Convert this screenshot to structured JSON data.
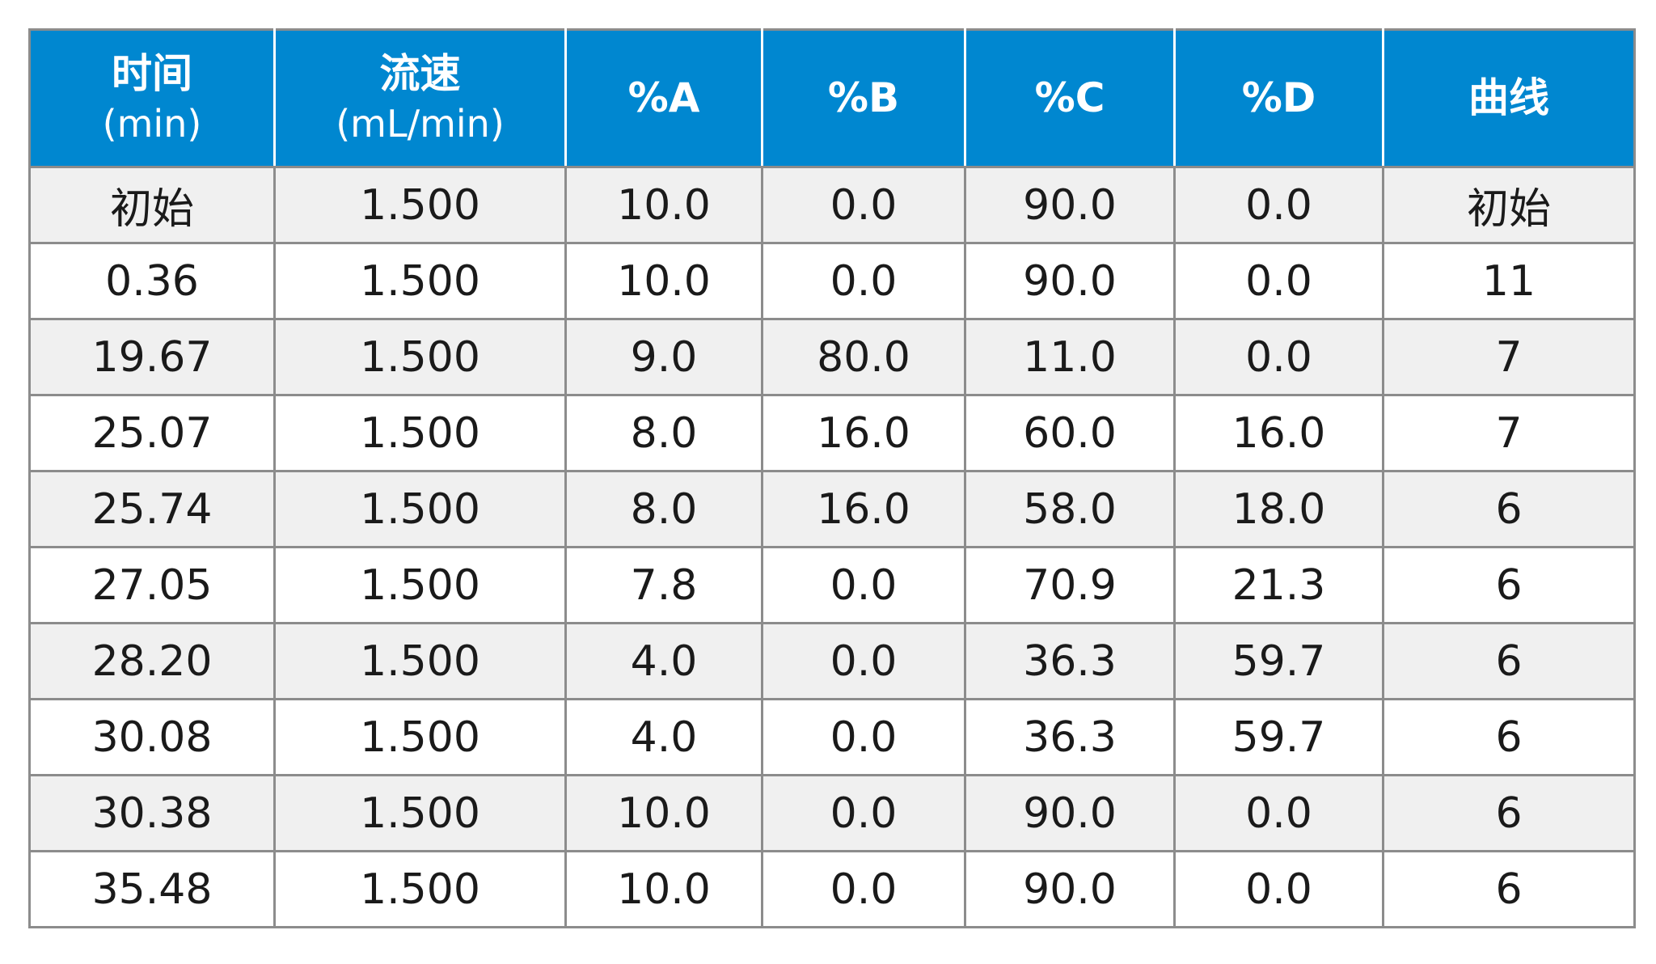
{
  "table": {
    "columns": [
      {
        "name": "时间",
        "unit": "(min)"
      },
      {
        "name": "流速",
        "unit": "(mL/min)"
      },
      {
        "name": "%A",
        "unit": ""
      },
      {
        "name": "%B",
        "unit": ""
      },
      {
        "name": "%C",
        "unit": ""
      },
      {
        "name": "%D",
        "unit": ""
      },
      {
        "name": "曲线",
        "unit": ""
      }
    ],
    "rows": [
      [
        "初始",
        "1.500",
        "10.0",
        "0.0",
        "90.0",
        "0.0",
        "初始"
      ],
      [
        "0.36",
        "1.500",
        "10.0",
        "0.0",
        "90.0",
        "0.0",
        "11"
      ],
      [
        "19.67",
        "1.500",
        "9.0",
        "80.0",
        "11.0",
        "0.0",
        "7"
      ],
      [
        "25.07",
        "1.500",
        "8.0",
        "16.0",
        "60.0",
        "16.0",
        "7"
      ],
      [
        "25.74",
        "1.500",
        "8.0",
        "16.0",
        "58.0",
        "18.0",
        "6"
      ],
      [
        "27.05",
        "1.500",
        "7.8",
        "0.0",
        "70.9",
        "21.3",
        "6"
      ],
      [
        "28.20",
        "1.500",
        "4.0",
        "0.0",
        "36.3",
        "59.7",
        "6"
      ],
      [
        "30.08",
        "1.500",
        "4.0",
        "0.0",
        "36.3",
        "59.7",
        "6"
      ],
      [
        "30.38",
        "1.500",
        "10.0",
        "0.0",
        "90.0",
        "0.0",
        "6"
      ],
      [
        "35.48",
        "1.500",
        "10.0",
        "0.0",
        "90.0",
        "0.0",
        "6"
      ]
    ]
  },
  "colors": {
    "header_bg": "#0087d0",
    "header_text": "#ffffff",
    "row_alt_bg": "#f0f0f0",
    "border": "#8c8c8c"
  }
}
